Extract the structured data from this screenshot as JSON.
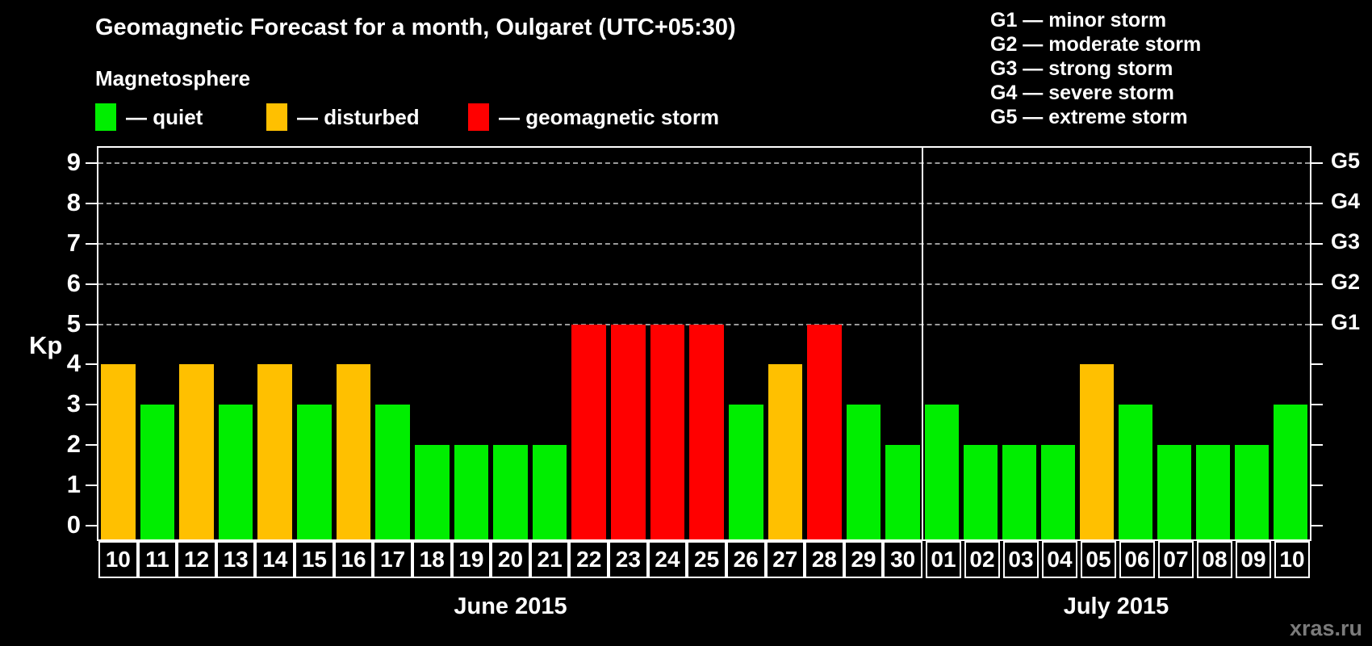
{
  "title": "Geomagnetic Forecast for a month, Oulgaret (UTC+05:30)",
  "legend": {
    "title": "Magnetosphere",
    "items": [
      {
        "state": "quiet",
        "label": "— quiet",
        "color": "#00ee00"
      },
      {
        "state": "disturbed",
        "label": "— disturbed",
        "color": "#ffc000"
      },
      {
        "state": "storm",
        "label": "— geomagnetic storm",
        "color": "#ff0000"
      }
    ]
  },
  "g_scale": [
    "G1 — minor storm",
    "G2 — moderate storm",
    "G3 — strong storm",
    "G4 — severe storm",
    "G5 — extreme storm"
  ],
  "watermark": "xras.ru",
  "chart_data": {
    "type": "bar",
    "title": "Geomagnetic Forecast for a month, Oulgaret (UTC+05:30)",
    "ylabel": "Kp",
    "ylim": [
      0,
      9
    ],
    "yticks": [
      0,
      1,
      2,
      3,
      4,
      5,
      6,
      7,
      8,
      9
    ],
    "gridlines_at": [
      5,
      6,
      7,
      8,
      9
    ],
    "grid_style": "dashed",
    "right_axis_labels": [
      {
        "kp": 5,
        "label": "G1"
      },
      {
        "kp": 6,
        "label": "G2"
      },
      {
        "kp": 7,
        "label": "G3"
      },
      {
        "kp": 8,
        "label": "G4"
      },
      {
        "kp": 9,
        "label": "G5"
      }
    ],
    "colors": {
      "quiet": "#00ee00",
      "disturbed": "#ffc000",
      "storm": "#ff0000"
    },
    "months": [
      {
        "key": "june",
        "label": "June 2015",
        "days": [
          {
            "day": "10",
            "kp": 4,
            "state": "disturbed"
          },
          {
            "day": "11",
            "kp": 3,
            "state": "quiet"
          },
          {
            "day": "12",
            "kp": 4,
            "state": "disturbed"
          },
          {
            "day": "13",
            "kp": 3,
            "state": "quiet"
          },
          {
            "day": "14",
            "kp": 4,
            "state": "disturbed"
          },
          {
            "day": "15",
            "kp": 3,
            "state": "quiet"
          },
          {
            "day": "16",
            "kp": 4,
            "state": "disturbed"
          },
          {
            "day": "17",
            "kp": 3,
            "state": "quiet"
          },
          {
            "day": "18",
            "kp": 2,
            "state": "quiet"
          },
          {
            "day": "19",
            "kp": 2,
            "state": "quiet"
          },
          {
            "day": "20",
            "kp": 2,
            "state": "quiet"
          },
          {
            "day": "21",
            "kp": 2,
            "state": "quiet"
          },
          {
            "day": "22",
            "kp": 5,
            "state": "storm"
          },
          {
            "day": "23",
            "kp": 5,
            "state": "storm"
          },
          {
            "day": "24",
            "kp": 5,
            "state": "storm"
          },
          {
            "day": "25",
            "kp": 5,
            "state": "storm"
          },
          {
            "day": "26",
            "kp": 3,
            "state": "quiet"
          },
          {
            "day": "27",
            "kp": 4,
            "state": "disturbed"
          },
          {
            "day": "28",
            "kp": 5,
            "state": "storm"
          },
          {
            "day": "29",
            "kp": 3,
            "state": "quiet"
          },
          {
            "day": "30",
            "kp": 2,
            "state": "quiet"
          }
        ]
      },
      {
        "key": "july",
        "label": "July 2015",
        "days": [
          {
            "day": "01",
            "kp": 3,
            "state": "quiet"
          },
          {
            "day": "02",
            "kp": 2,
            "state": "quiet"
          },
          {
            "day": "03",
            "kp": 2,
            "state": "quiet"
          },
          {
            "day": "04",
            "kp": 2,
            "state": "quiet"
          },
          {
            "day": "05",
            "kp": 4,
            "state": "disturbed"
          },
          {
            "day": "06",
            "kp": 3,
            "state": "quiet"
          },
          {
            "day": "07",
            "kp": 2,
            "state": "quiet"
          },
          {
            "day": "08",
            "kp": 2,
            "state": "quiet"
          },
          {
            "day": "09",
            "kp": 2,
            "state": "quiet"
          },
          {
            "day": "10",
            "kp": 3,
            "state": "quiet"
          }
        ]
      }
    ]
  }
}
